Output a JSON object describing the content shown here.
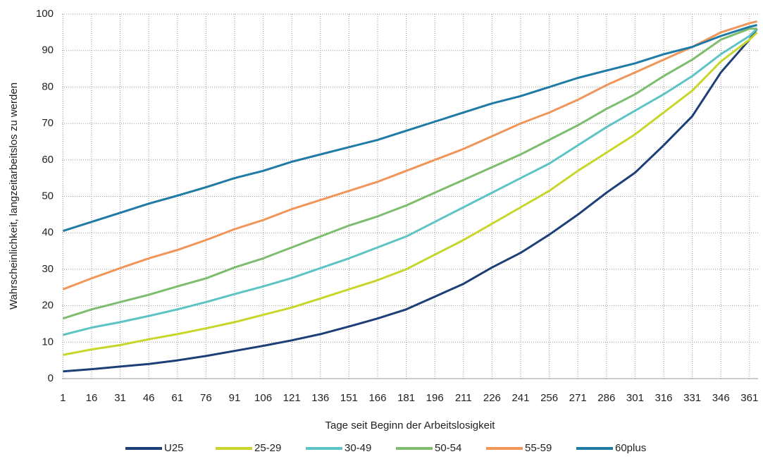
{
  "chart_data": {
    "type": "line",
    "y_label": "Wahrscheinlichkeit, langzeitarbeitslos zu werden",
    "x_label": "Tage seit Beginn der Arbeitslosigkeit",
    "x": [
      1,
      16,
      31,
      46,
      61,
      76,
      91,
      106,
      121,
      136,
      151,
      166,
      181,
      196,
      211,
      226,
      241,
      256,
      271,
      286,
      301,
      316,
      331,
      346,
      361,
      365
    ],
    "series": [
      {
        "name": "U25",
        "color": "#1d3f77",
        "values": [
          2,
          2.6,
          3.3,
          4,
          5,
          6.2,
          7.6,
          9,
          10.5,
          12.2,
          14.3,
          16.5,
          19,
          22.5,
          26,
          30.5,
          34.5,
          39.5,
          45,
          51,
          56.5,
          64,
          72,
          84,
          93,
          96
        ]
      },
      {
        "name": "25-29",
        "color": "#c8d62b",
        "values": [
          6.5,
          8,
          9.2,
          10.8,
          12.2,
          13.8,
          15.5,
          17.5,
          19.5,
          22,
          24.5,
          27,
          30,
          34,
          38,
          42.5,
          47,
          51.5,
          57,
          62,
          67,
          73,
          79,
          87,
          93,
          95
        ]
      },
      {
        "name": "30-49",
        "color": "#5ec3c5",
        "values": [
          12,
          14,
          15.5,
          17.2,
          19,
          21,
          23.2,
          25.3,
          27.6,
          30.3,
          33,
          36,
          39,
          43,
          47,
          51,
          55,
          59,
          64,
          69,
          73.5,
          78,
          83,
          89,
          94,
          96
        ]
      },
      {
        "name": "50-54",
        "color": "#7ebc6e",
        "values": [
          16.5,
          19,
          21,
          23,
          25.3,
          27.5,
          30.5,
          33,
          36,
          39,
          42,
          44.5,
          47.5,
          51,
          54.5,
          58,
          61.5,
          65.5,
          69.5,
          74,
          78,
          83,
          87.5,
          93,
          96,
          96
        ]
      },
      {
        "name": "55-59",
        "color": "#f0965a",
        "values": [
          24.5,
          27.5,
          30.3,
          33,
          35.3,
          38,
          41,
          43.5,
          46.5,
          49,
          51.5,
          54,
          57,
          60,
          63,
          66.5,
          70,
          73,
          76.5,
          80.5,
          84,
          87.5,
          91,
          95,
          97.5,
          98
        ]
      },
      {
        "name": "60plus",
        "color": "#1f7aa5",
        "values": [
          40.5,
          43,
          45.5,
          48,
          50.2,
          52.5,
          55,
          57,
          59.5,
          61.5,
          63.5,
          65.5,
          68,
          70.5,
          73,
          75.5,
          77.5,
          80,
          82.5,
          84.5,
          86.5,
          89,
          91,
          94,
          96.5,
          97
        ]
      }
    ],
    "xlim": [
      0.5,
      365.5
    ],
    "xticks": [
      1,
      16,
      31,
      46,
      61,
      76,
      91,
      106,
      121,
      136,
      151,
      166,
      181,
      196,
      211,
      226,
      241,
      256,
      271,
      286,
      301,
      316,
      331,
      346,
      361
    ],
    "ylim": [
      0,
      100
    ],
    "yticks": [
      0,
      10,
      20,
      30,
      40,
      50,
      60,
      70,
      80,
      90,
      100
    ],
    "grid": true,
    "legend": "bottom"
  }
}
